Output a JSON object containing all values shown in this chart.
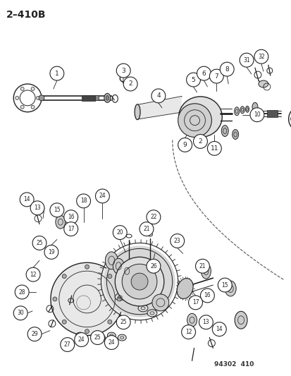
{
  "title": "2–410B",
  "footer": "94302  410",
  "bg_color": "#ffffff",
  "fig_width": 4.14,
  "fig_height": 5.33,
  "dpi": 100,
  "title_fontsize": 10,
  "footer_fontsize": 6.5,
  "dc": "#222222",
  "lc": "#333333",
  "gray": "#888888",
  "lgray": "#cccccc"
}
